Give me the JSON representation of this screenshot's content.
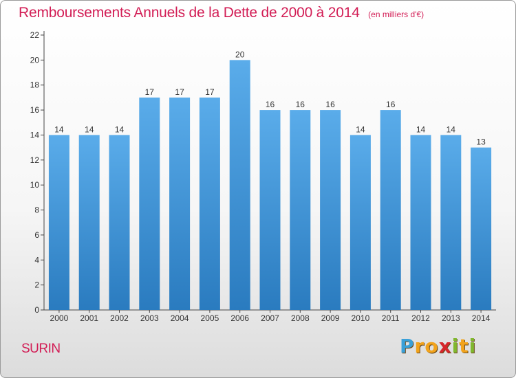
{
  "chart_data": {
    "type": "bar",
    "title": "Remboursements Annuels de la Dette de 2000 à 2014",
    "unit_note": "(en milliers d'€)",
    "categories": [
      "2000",
      "2001",
      "2002",
      "2003",
      "2004",
      "2005",
      "2006",
      "2007",
      "2008",
      "2009",
      "2010",
      "2011",
      "2012",
      "2013",
      "2014"
    ],
    "values": [
      14,
      14,
      14,
      17,
      17,
      17,
      20,
      16,
      16,
      16,
      14,
      16,
      14,
      14,
      13
    ],
    "ylim": [
      0,
      22
    ],
    "yticks": [
      0,
      2,
      4,
      6,
      8,
      10,
      12,
      14,
      16,
      18,
      20,
      22
    ],
    "grid": false,
    "legend": "none",
    "bar_color_top": "#5aacea",
    "bar_color_bottom": "#2a7bbf"
  },
  "commune": "SURIN",
  "logo": {
    "letters": [
      "P",
      "r",
      "o",
      "x",
      "i",
      "t",
      "i"
    ],
    "colors": [
      "#3aa0d8",
      "#f2a31b",
      "#f2a31b",
      "#d6262b",
      "#80b82e",
      "#f2a31b",
      "#80b82e"
    ]
  }
}
